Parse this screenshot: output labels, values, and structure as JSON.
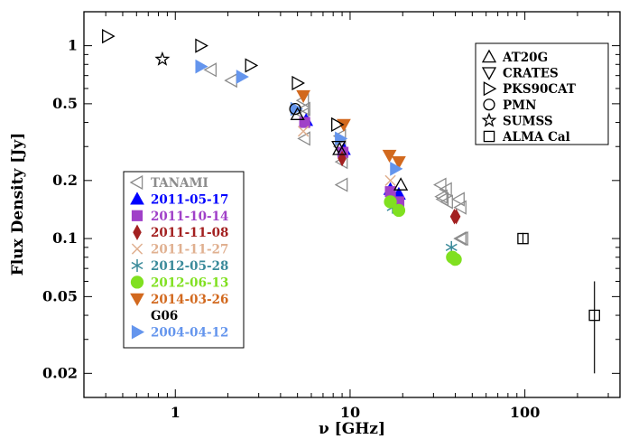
{
  "chart_data": {
    "type": "scatter",
    "title": "",
    "xlabel": "ν [GHz]",
    "ylabel": "Flux Density [Jy]",
    "xscale": "log",
    "yscale": "log",
    "xlim": [
      0.3,
      350
    ],
    "ylim": [
      0.015,
      1.5
    ],
    "x_ticks": [
      {
        "value": 1,
        "label": "1"
      },
      {
        "value": 10,
        "label": "10"
      },
      {
        "value": 100,
        "label": "100"
      }
    ],
    "y_ticks": [
      {
        "value": 0.02,
        "label": "0.02"
      },
      {
        "value": 0.05,
        "label": "0.05"
      },
      {
        "value": 0.1,
        "label": "0.1"
      },
      {
        "value": 0.2,
        "label": "0.2"
      },
      {
        "value": 0.5,
        "label": "0.5"
      },
      {
        "value": 1,
        "label": "1"
      }
    ],
    "grid": false,
    "legends": [
      {
        "placement": "top-right",
        "entries": [
          {
            "label": "AT20G",
            "series": "AT20G"
          },
          {
            "label": "CRATES",
            "series": "CRATES"
          },
          {
            "label": "PKS90CAT",
            "series": "PKS90CAT"
          },
          {
            "label": "PMN",
            "series": "PMN"
          },
          {
            "label": "SUMSS",
            "series": "SUMSS"
          },
          {
            "label": "ALMA Cal",
            "series": "ALMA Cal"
          }
        ]
      },
      {
        "placement": "center-left",
        "entries": [
          {
            "label": "TANAMI",
            "series": "TANAMI"
          },
          {
            "label": "2011-05-17",
            "series": "2011-05-17"
          },
          {
            "label": "2011-10-14",
            "series": "2011-10-14"
          },
          {
            "label": "2011-11-08",
            "series": "2011-11-08"
          },
          {
            "label": "2011-11-27",
            "series": "2011-11-27"
          },
          {
            "label": "2012-05-28",
            "series": "2012-05-28"
          },
          {
            "label": "2012-06-13",
            "series": "2012-06-13"
          },
          {
            "label": "2014-03-26",
            "series": "2014-03-26"
          },
          {
            "label": "G06",
            "series": null
          },
          {
            "label": "2004-04-12",
            "series": "2004-04-12"
          }
        ]
      }
    ],
    "series": [
      {
        "name": "TANAMI",
        "marker": "triangle-left-open",
        "color": "#8c8c8c",
        "points": [
          {
            "x": 1.6,
            "y": 0.75
          },
          {
            "x": 2.1,
            "y": 0.66
          },
          {
            "x": 5.4,
            "y": 0.52
          },
          {
            "x": 5.5,
            "y": 0.47
          },
          {
            "x": 5.4,
            "y": 0.44
          },
          {
            "x": 5.5,
            "y": 0.33
          },
          {
            "x": 8.8,
            "y": 0.34
          },
          {
            "x": 8.8,
            "y": 0.3
          },
          {
            "x": 9.0,
            "y": 0.25
          },
          {
            "x": 9.0,
            "y": 0.19
          },
          {
            "x": 33.0,
            "y": 0.19
          },
          {
            "x": 33.5,
            "y": 0.165
          },
          {
            "x": 34.0,
            "y": 0.16
          },
          {
            "x": 35.5,
            "y": 0.18
          },
          {
            "x": 36.0,
            "y": 0.155
          },
          {
            "x": 42.0,
            "y": 0.16
          },
          {
            "x": 43.0,
            "y": 0.145
          },
          {
            "x": 43.0,
            "y": 0.1
          },
          {
            "x": 44.0,
            "y": 0.1
          }
        ]
      },
      {
        "name": "2011-05-17",
        "marker": "triangle-up",
        "color": "#0000ff",
        "points": [
          {
            "x": 5.6,
            "y": 0.41
          },
          {
            "x": 9.2,
            "y": 0.29
          },
          {
            "x": 17.0,
            "y": 0.18
          },
          {
            "x": 19.0,
            "y": 0.17
          }
        ]
      },
      {
        "name": "2011-10-14",
        "marker": "square",
        "color": "#a040c8",
        "points": [
          {
            "x": 5.5,
            "y": 0.4
          },
          {
            "x": 9.1,
            "y": 0.28
          },
          {
            "x": 17.0,
            "y": 0.175
          },
          {
            "x": 19.0,
            "y": 0.155
          }
        ]
      },
      {
        "name": "2011-11-08",
        "marker": "diamond",
        "color": "#a32020",
        "points": [
          {
            "x": 9.0,
            "y": 0.26
          },
          {
            "x": 39.5,
            "y": 0.13
          },
          {
            "x": 40.5,
            "y": 0.13
          }
        ]
      },
      {
        "name": "2011-11-27",
        "marker": "x",
        "color": "#e0b090",
        "points": [
          {
            "x": 5.4,
            "y": 0.36
          },
          {
            "x": 17.0,
            "y": 0.2
          }
        ]
      },
      {
        "name": "2012-05-28",
        "marker": "asterisk",
        "color": "#3a8a9a",
        "points": [
          {
            "x": 17.5,
            "y": 0.145
          },
          {
            "x": 38.0,
            "y": 0.09
          }
        ]
      },
      {
        "name": "2012-06-13",
        "marker": "circle",
        "color": "#80e020",
        "points": [
          {
            "x": 17.0,
            "y": 0.155
          },
          {
            "x": 19.0,
            "y": 0.14
          },
          {
            "x": 38.5,
            "y": 0.08
          },
          {
            "x": 40.0,
            "y": 0.078
          }
        ]
      },
      {
        "name": "2014-03-26",
        "marker": "triangle-down",
        "color": "#d2691e",
        "points": [
          {
            "x": 5.4,
            "y": 0.55
          },
          {
            "x": 9.2,
            "y": 0.39
          },
          {
            "x": 16.8,
            "y": 0.27
          },
          {
            "x": 19.0,
            "y": 0.25
          }
        ]
      },
      {
        "name": "2004-04-12",
        "marker": "triangle-right",
        "color": "#6495ed",
        "points": [
          {
            "x": 1.4,
            "y": 0.78
          },
          {
            "x": 2.4,
            "y": 0.69
          },
          {
            "x": 4.9,
            "y": 0.47
          },
          {
            "x": 8.8,
            "y": 0.33
          },
          {
            "x": 18.2,
            "y": 0.23
          }
        ]
      },
      {
        "name": "AT20G",
        "marker": "triangle-up-open",
        "color": "#000000",
        "points": [
          {
            "x": 5.0,
            "y": 0.44
          },
          {
            "x": 8.7,
            "y": 0.29
          },
          {
            "x": 19.5,
            "y": 0.19
          }
        ]
      },
      {
        "name": "CRATES",
        "marker": "triangle-down-open",
        "color": "#000000",
        "points": [
          {
            "x": 8.6,
            "y": 0.3
          }
        ]
      },
      {
        "name": "PKS90CAT",
        "marker": "triangle-right-open",
        "color": "#000000",
        "points": [
          {
            "x": 0.41,
            "y": 1.12
          },
          {
            "x": 1.4,
            "y": 1.0
          },
          {
            "x": 2.7,
            "y": 0.79
          },
          {
            "x": 5.0,
            "y": 0.64
          },
          {
            "x": 8.4,
            "y": 0.39
          }
        ]
      },
      {
        "name": "PMN",
        "marker": "circle-open",
        "color": "#000000",
        "points": [
          {
            "x": 4.85,
            "y": 0.47
          }
        ]
      },
      {
        "name": "SUMSS",
        "marker": "star-open",
        "color": "#000000",
        "points": [
          {
            "x": 0.843,
            "y": 0.85
          }
        ]
      },
      {
        "name": "ALMA Cal",
        "marker": "square-open",
        "color": "#000000",
        "points": [
          {
            "x": 97.5,
            "y": 0.1,
            "yerr_low": 0.094,
            "yerr_high": 0.107
          },
          {
            "x": 250.0,
            "y": 0.04,
            "yerr_low": 0.02,
            "yerr_high": 0.06
          }
        ]
      }
    ]
  }
}
